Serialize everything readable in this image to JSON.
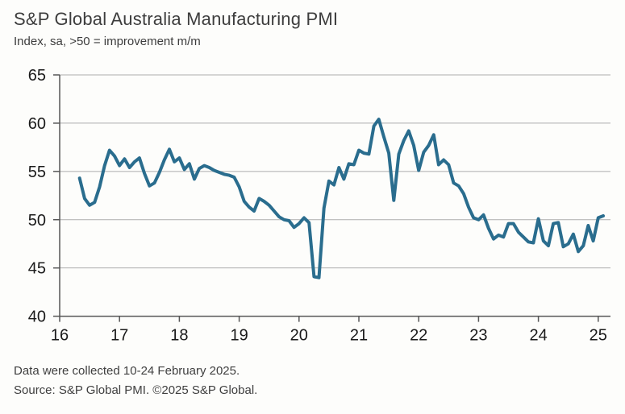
{
  "header": {
    "title": "S&P Global Australia Manufacturing PMI",
    "subtitle": "Index, sa, >50 = improvement m/m"
  },
  "footer": {
    "line1": "Data were collected 10-24 February 2025.",
    "line2": "Source: S&P Global PMI. ©2025 S&P Global."
  },
  "chart_data": {
    "type": "line",
    "title": "S&P Global Australia Manufacturing PMI",
    "subtitle": "Index, sa, >50 = improvement m/m",
    "frequency": "monthly",
    "start": "2016-05",
    "end": "2025-02",
    "ylim": [
      40,
      65
    ],
    "xlim_years": [
      16,
      25.2
    ],
    "y_ticks": [
      40,
      45,
      50,
      55,
      60,
      65
    ],
    "x_tick_labels": [
      "16",
      "17",
      "18",
      "19",
      "20",
      "21",
      "22",
      "23",
      "24",
      "25"
    ],
    "x_tick_years": [
      16,
      17,
      18,
      19,
      20,
      21,
      22,
      23,
      24,
      25
    ],
    "grid": true,
    "legend_position": "none",
    "line_color": "#2a6d8e",
    "grid_color": "#adadad",
    "axis_color": "#565656",
    "tick_label_color": "#1a1a1a",
    "series": [
      {
        "name": "Australia Manufacturing PMI",
        "values": [
          54.3,
          52.2,
          51.5,
          51.8,
          53.4,
          55.6,
          57.2,
          56.6,
          55.6,
          56.3,
          55.4,
          56.0,
          56.4,
          54.8,
          53.5,
          53.8,
          54.9,
          56.2,
          57.3,
          56.0,
          56.4,
          55.2,
          55.8,
          54.2,
          55.3,
          55.6,
          55.4,
          55.1,
          54.9,
          54.7,
          54.6,
          54.4,
          53.4,
          51.9,
          51.3,
          50.9,
          52.2,
          51.9,
          51.5,
          50.9,
          50.3,
          50.0,
          49.9,
          49.2,
          49.6,
          50.2,
          49.7,
          44.1,
          44.0,
          51.2,
          54.0,
          53.6,
          55.4,
          54.2,
          55.8,
          55.7,
          57.2,
          56.9,
          56.8,
          59.7,
          60.4,
          58.6,
          56.9,
          52.0,
          56.8,
          58.2,
          59.2,
          57.7,
          55.1,
          57.0,
          57.7,
          58.8,
          55.7,
          56.2,
          55.7,
          53.8,
          53.5,
          52.7,
          51.3,
          50.2,
          50.0,
          50.5,
          49.1,
          48.0,
          48.4,
          48.2,
          49.6,
          49.6,
          48.7,
          48.2,
          47.7,
          47.6,
          50.1,
          47.8,
          47.3,
          49.6,
          49.7,
          47.2,
          47.5,
          48.5,
          46.7,
          47.3,
          49.4,
          47.8,
          50.2,
          50.4
        ]
      }
    ]
  }
}
